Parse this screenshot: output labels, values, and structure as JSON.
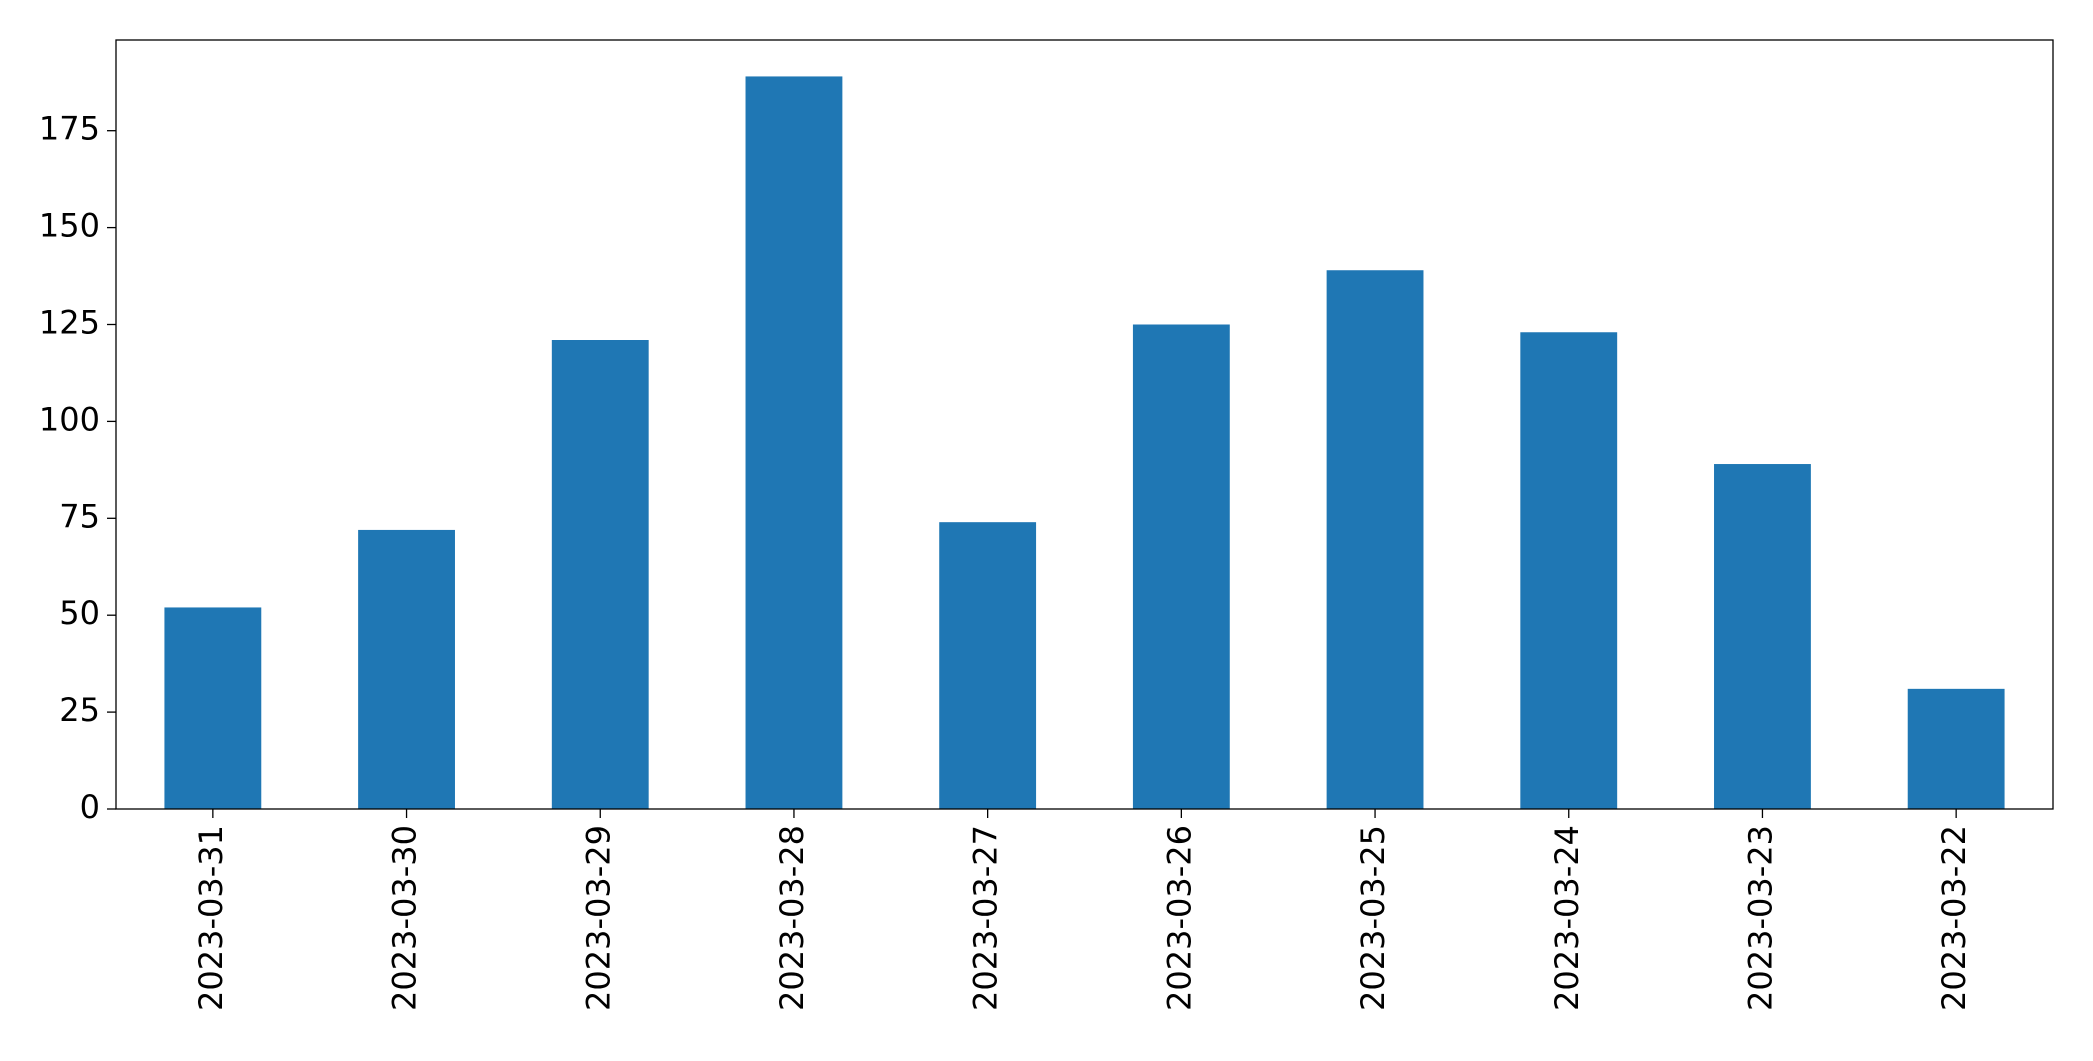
{
  "chart_data": {
    "type": "bar",
    "categories": [
      "2023-03-31",
      "2023-03-30",
      "2023-03-29",
      "2023-03-28",
      "2023-03-27",
      "2023-03-26",
      "2023-03-25",
      "2023-03-24",
      "2023-03-23",
      "2023-03-22"
    ],
    "values": [
      52,
      72,
      121,
      189,
      74,
      125,
      139,
      123,
      89,
      31
    ],
    "color": "#1f77b4",
    "ylim": [
      0,
      198.4
    ],
    "yticks": [
      0,
      25,
      50,
      75,
      100,
      125,
      150,
      175
    ],
    "grid": false
  }
}
